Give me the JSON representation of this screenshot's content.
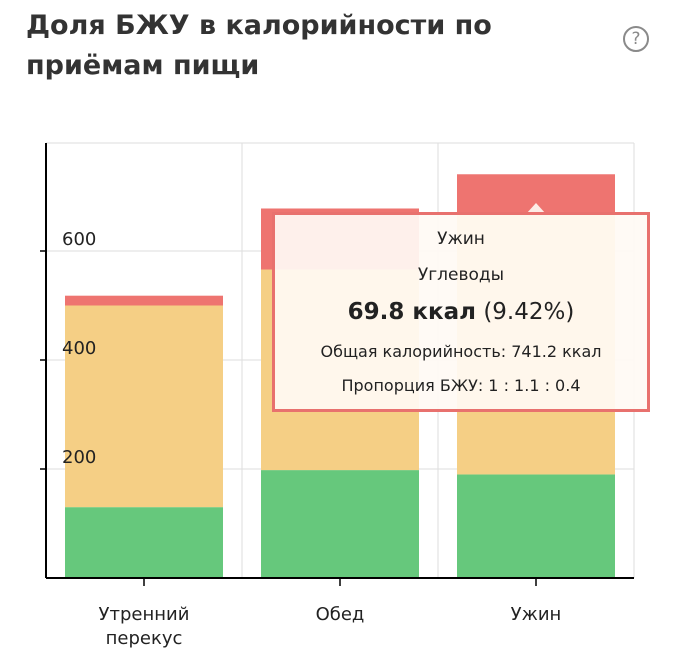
{
  "header": {
    "title": "Доля БЖУ в калорийности по приёмам пищи",
    "help_icon": "question-circle-icon",
    "help_glyph": "?"
  },
  "colors": {
    "protein": "#66c87c",
    "fat": "#f5cf85",
    "carbs": "#ee7470",
    "axis": "#000000",
    "grid": "#dddddd"
  },
  "chart_data": {
    "type": "bar",
    "stacked": true,
    "title": "Доля БЖУ в калорийности по приёмам пищи",
    "categories": [
      "Утренний перекус",
      "Обед",
      "Ужин"
    ],
    "category_lines": [
      [
        "Утренний",
        "перекус"
      ],
      [
        "Обед"
      ],
      [
        "Ужин"
      ]
    ],
    "series": [
      {
        "key": "protein",
        "values": [
          130,
          198,
          190
        ]
      },
      {
        "key": "fat",
        "values": [
          370,
          368,
          481
        ]
      },
      {
        "key": "carbs",
        "name": "Углеводы",
        "values": [
          18,
          112,
          69.8
        ]
      }
    ],
    "yticks": [
      200,
      400,
      600
    ],
    "ylim": [
      0,
      800
    ],
    "grid": true
  },
  "tooltip": {
    "category": "Ужин",
    "series": "Углеводы",
    "value": "69.8 ккал",
    "percent": "(9.42%)",
    "total": "Общая калорийность: 741.2 ккал",
    "ratio": "Пропорция БЖУ: 1 : 1.1 : 0.4"
  }
}
